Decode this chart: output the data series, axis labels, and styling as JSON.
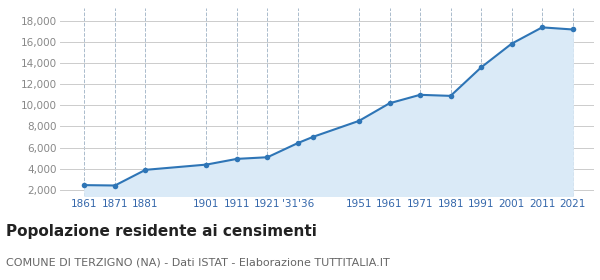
{
  "years": [
    1861,
    1871,
    1881,
    1901,
    1911,
    1921,
    1931,
    1936,
    1951,
    1961,
    1971,
    1981,
    1991,
    2001,
    2011,
    2021
  ],
  "population": [
    2432,
    2396,
    3882,
    4381,
    4923,
    5078,
    6430,
    7020,
    8530,
    10200,
    11000,
    10900,
    13600,
    15850,
    17400,
    17200
  ],
  "line_color": "#2e75b6",
  "fill_color": "#daeaf7",
  "marker_color": "#2e75b6",
  "background_color": "#ffffff",
  "grid_color_h": "#cccccc",
  "grid_color_v": "#aabbcc",
  "title": "Popolazione residente ai censimenti",
  "subtitle": "COMUNE DI TERZIGNO (NA) - Dati ISTAT - Elaborazione TUTTITALIA.IT",
  "yticks": [
    2000,
    4000,
    6000,
    8000,
    10000,
    12000,
    14000,
    16000,
    18000
  ],
  "ylim": [
    1400,
    19200
  ],
  "xlim": [
    1853,
    2028
  ],
  "title_fontsize": 11,
  "subtitle_fontsize": 8,
  "tick_fontsize": 7.5,
  "xtick_positions": [
    1861,
    1871,
    1881,
    1901,
    1911,
    1921,
    1931,
    1951,
    1961,
    1971,
    1981,
    1991,
    2001,
    2011,
    2021
  ],
  "xtick_labels": [
    "1861",
    "1871",
    "1881",
    "1901",
    "1911",
    "1921",
    "'31'36",
    "1951",
    "1961",
    "1971",
    "1981",
    "1991",
    "2001",
    "2011",
    "2021"
  ]
}
